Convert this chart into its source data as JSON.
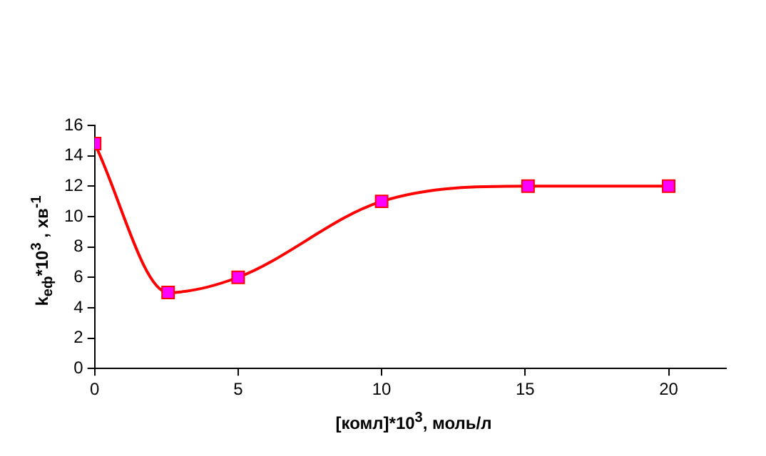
{
  "chart_data": {
    "type": "line",
    "xlabel": "[комл]*10$^{3}$, моль/л",
    "ylabel": "k$_{еф}$*10$^{3}$ , хв$^{-1}$",
    "x": [
      0,
      2.56,
      5,
      10,
      15.1,
      20
    ],
    "series": [
      {
        "color": "#ff0000",
        "values": [
          14.8,
          5,
          6,
          11,
          12,
          12
        ]
      }
    ],
    "xlim": [
      0,
      22
    ],
    "xticks": [
      0,
      5,
      10,
      15,
      20
    ],
    "ylim": [
      0,
      16
    ],
    "yticks": [
      0,
      2,
      4,
      6,
      8,
      10,
      12,
      14,
      16
    ],
    "marker": "square",
    "line_style": "solid",
    "grid": false,
    "legend": false
  }
}
